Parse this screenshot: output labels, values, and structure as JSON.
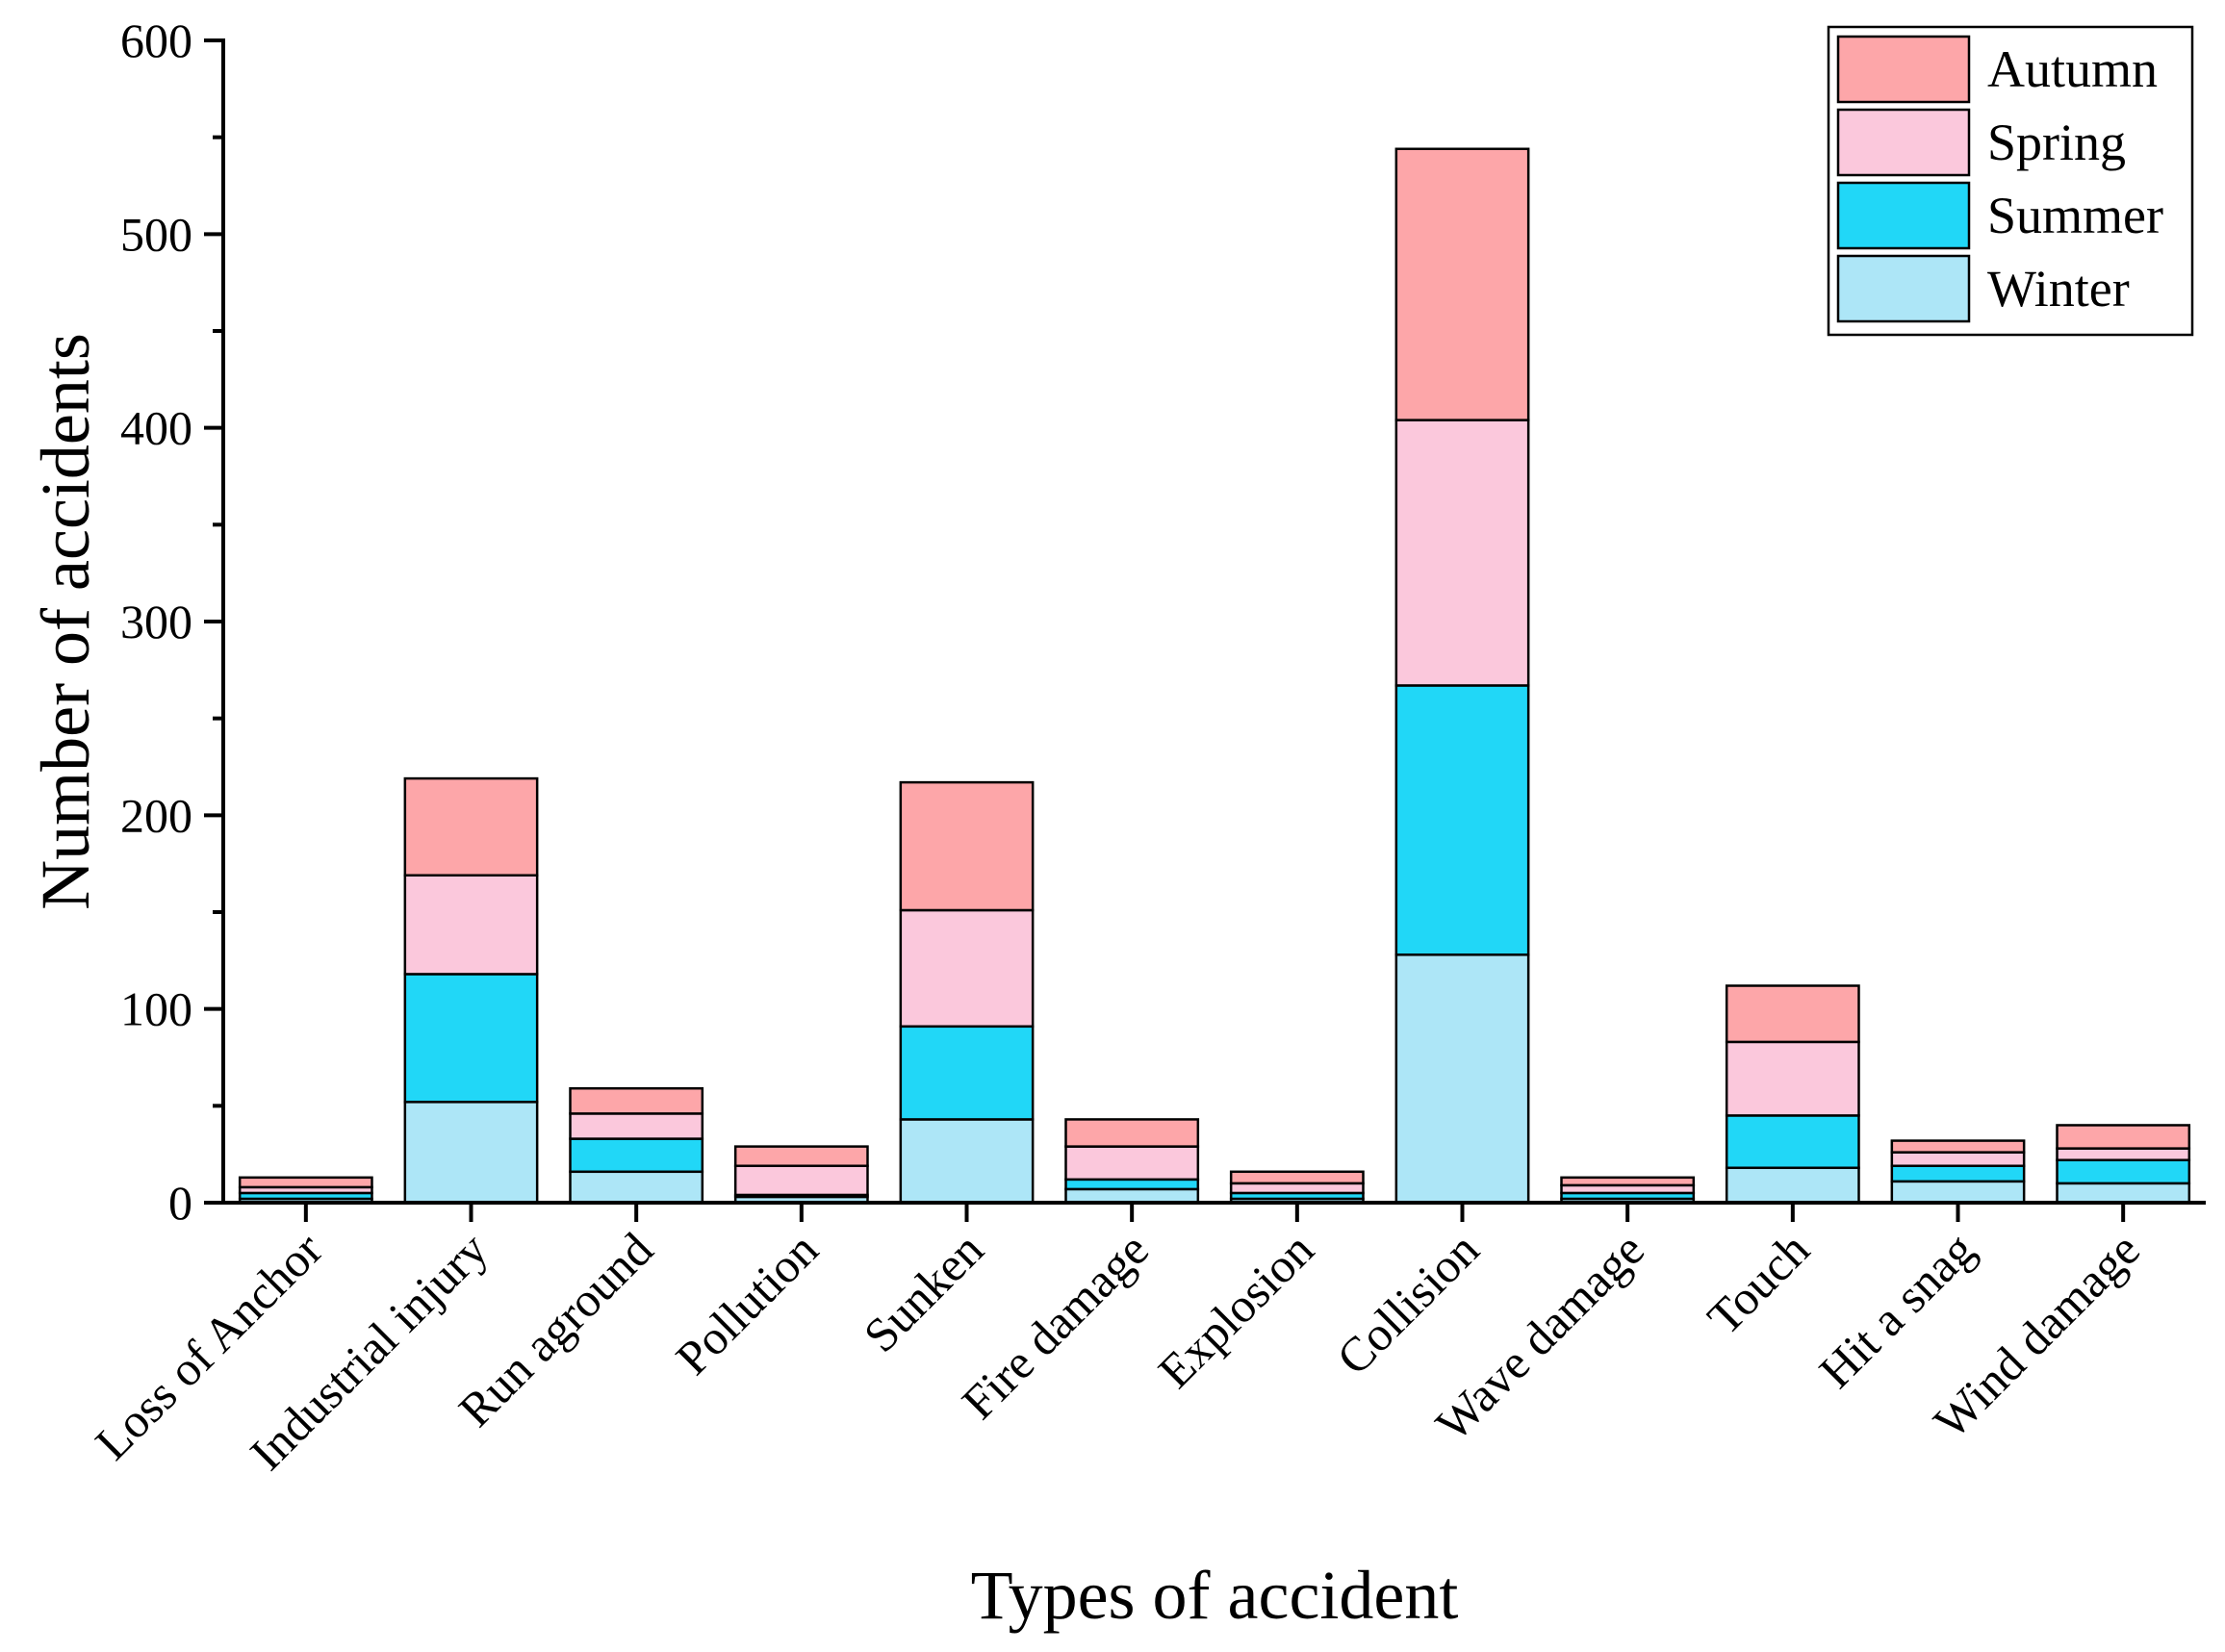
{
  "chart_data": {
    "type": "bar",
    "stacked": true,
    "title": "",
    "xlabel": "Types of accident",
    "ylabel": "Number of accidents",
    "ylim": [
      0,
      600
    ],
    "yticks": [
      0,
      100,
      200,
      300,
      400,
      500,
      600
    ],
    "legend_position": "top-right",
    "grid": false,
    "categories": [
      "Loss of Anchor",
      "Industrial injury",
      "Run aground",
      "Pollution",
      "Sunken",
      "Fire damage",
      "Explosion",
      "Collision",
      "Wave damage",
      "Touch",
      "Hit a snag",
      "Wind damage"
    ],
    "series": [
      {
        "name": "Winter",
        "color": "#ade6f7",
        "values": [
          2,
          52,
          16,
          3,
          43,
          7,
          2,
          128,
          2,
          18,
          11,
          10
        ]
      },
      {
        "name": "Summer",
        "color": "#21d7f7",
        "values": [
          3,
          66,
          17,
          1,
          48,
          5,
          3,
          139,
          3,
          27,
          8,
          12
        ]
      },
      {
        "name": "Spring",
        "color": "#fbc8dc",
        "values": [
          3,
          51,
          13,
          15,
          60,
          17,
          5,
          137,
          4,
          38,
          7,
          6
        ]
      },
      {
        "name": "Autumn",
        "color": "#fda6a9",
        "values": [
          5,
          50,
          13,
          10,
          66,
          14,
          6,
          140,
          4,
          29,
          6,
          12
        ]
      }
    ],
    "legend_order": [
      "Autumn",
      "Spring",
      "Summer",
      "Winter"
    ]
  }
}
